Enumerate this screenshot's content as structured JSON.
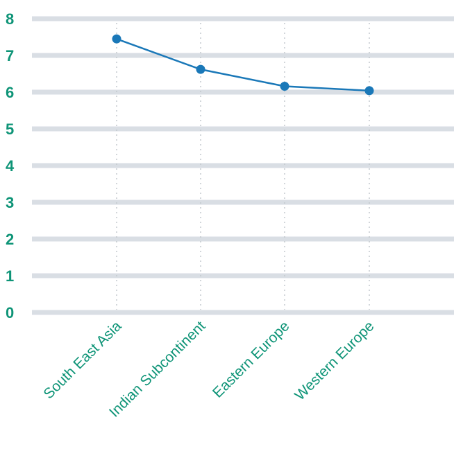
{
  "chart_data": {
    "type": "line",
    "categories": [
      "South East Asia",
      "Indian Subcontinent",
      "Eastern Europe",
      "Western Europe"
    ],
    "series": [
      {
        "values": [
          7.45,
          6.62,
          6.16,
          6.04
        ]
      }
    ],
    "y_ticks": [
      "0",
      "1",
      "2",
      "3",
      "4",
      "5",
      "6",
      "7",
      "8"
    ],
    "ylim": [
      0,
      8
    ],
    "grid": true,
    "colors": {
      "gridline": "#d9dee4",
      "tick_label": "#0e9477",
      "series": "#1a78b8",
      "guide": "#c3c8cd"
    }
  }
}
